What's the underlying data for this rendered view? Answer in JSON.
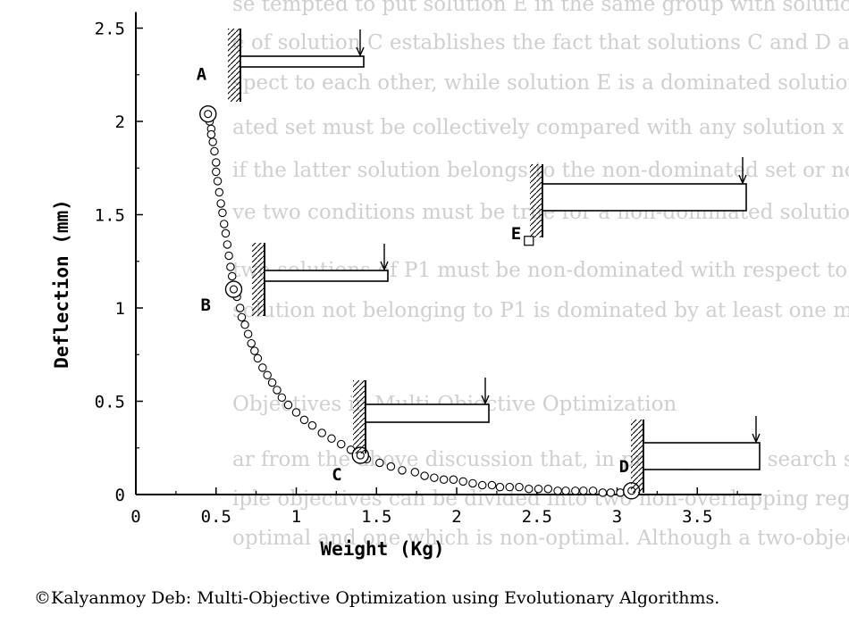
{
  "background_text": [
    "se tempted to put solution E in the same group with solution B",
    "e of solution C establishes the fact that solutions C and D are",
    "spect to each other, while solution E is a dominated solution.",
    "ated set must be collectively compared with any solution x in",
    "if the latter solution belongs to the non-dominated set or not.",
    "ve two conditions must be true for a non-dominated solution:",
    "two solutions of P1 must be non-dominated with respect to ea",
    "solution not belonging to P1 is dominated by at least one mem",
    "Objectives in Multi-Objective Optimization",
    "ar from the above discussion that, in principle, the search space",
    "iple objectives can be divided into two non-overlapping regions,",
    "optimal and one which is non-optimal. Although a two-objec"
  ],
  "copyright": "©Kalyanmoy Deb: Multi-Objective Optimization using Evolutionary Algorithms.",
  "chart_data": {
    "type": "scatter",
    "xlabel": "Weight (Kg)",
    "ylabel": "Deflection (mm)",
    "xlim": [
      0,
      3.9
    ],
    "ylim": [
      0,
      2.5
    ],
    "x_ticks": [
      0,
      0.5,
      1,
      1.5,
      2,
      2.5,
      3,
      3.5
    ],
    "x_tick_labels": [
      "0",
      "0.5",
      "1",
      "1.5",
      "2",
      "2.5",
      "3",
      "3.5"
    ],
    "y_ticks": [
      0,
      0.5,
      1,
      1.5,
      2,
      2.5
    ],
    "y_tick_labels": [
      "0",
      "0.5",
      "1",
      "1.5",
      "2",
      "2.5"
    ],
    "grid": false,
    "series": [
      {
        "marker": "circle",
        "points": [
          [
            0.45,
            2.04
          ],
          [
            0.46,
            2.0
          ],
          [
            0.47,
            1.96
          ],
          [
            0.47,
            1.93
          ],
          [
            0.48,
            1.89
          ],
          [
            0.49,
            1.84
          ],
          [
            0.5,
            1.78
          ],
          [
            0.5,
            1.73
          ],
          [
            0.51,
            1.68
          ],
          [
            0.52,
            1.62
          ],
          [
            0.53,
            1.56
          ],
          [
            0.54,
            1.51
          ],
          [
            0.55,
            1.45
          ],
          [
            0.56,
            1.4
          ],
          [
            0.57,
            1.34
          ],
          [
            0.58,
            1.28
          ],
          [
            0.59,
            1.22
          ],
          [
            0.6,
            1.17
          ],
          [
            0.62,
            1.12
          ],
          [
            0.63,
            1.06
          ],
          [
            0.65,
            1.0
          ],
          [
            0.66,
            0.95
          ],
          [
            0.68,
            0.91
          ],
          [
            0.7,
            0.86
          ],
          [
            0.72,
            0.81
          ],
          [
            0.74,
            0.77
          ],
          [
            0.76,
            0.73
          ],
          [
            0.79,
            0.68
          ],
          [
            0.82,
            0.64
          ],
          [
            0.85,
            0.6
          ],
          [
            0.88,
            0.56
          ],
          [
            0.91,
            0.52
          ],
          [
            0.95,
            0.48
          ],
          [
            1.0,
            0.44
          ],
          [
            1.05,
            0.4
          ],
          [
            1.1,
            0.37
          ],
          [
            1.16,
            0.33
          ],
          [
            1.22,
            0.3
          ],
          [
            1.28,
            0.27
          ],
          [
            1.34,
            0.24
          ],
          [
            1.44,
            0.19
          ],
          [
            1.52,
            0.17
          ],
          [
            1.59,
            0.15
          ],
          [
            1.66,
            0.13
          ],
          [
            1.74,
            0.12
          ],
          [
            1.8,
            0.1
          ],
          [
            1.86,
            0.09
          ],
          [
            1.92,
            0.08
          ],
          [
            1.98,
            0.08
          ],
          [
            2.04,
            0.07
          ],
          [
            2.1,
            0.06
          ],
          [
            2.16,
            0.05
          ],
          [
            2.22,
            0.05
          ],
          [
            2.27,
            0.04
          ],
          [
            2.33,
            0.04
          ],
          [
            2.39,
            0.04
          ],
          [
            2.45,
            0.03
          ],
          [
            2.51,
            0.03
          ],
          [
            2.57,
            0.03
          ],
          [
            2.63,
            0.02
          ],
          [
            2.68,
            0.02
          ],
          [
            2.74,
            0.02
          ],
          [
            2.79,
            0.02
          ],
          [
            2.85,
            0.02
          ],
          [
            2.91,
            0.01
          ],
          [
            2.96,
            0.01
          ],
          [
            3.02,
            0.01
          ]
        ]
      }
    ],
    "labeled_points": [
      {
        "label": "A",
        "x": 0.45,
        "y": 2.04,
        "marker": "circle-large"
      },
      {
        "label": "B",
        "x": 0.61,
        "y": 1.1,
        "marker": "circle-large"
      },
      {
        "label": "C",
        "x": 1.4,
        "y": 0.21,
        "marker": "circle-large"
      },
      {
        "label": "D",
        "x": 3.09,
        "y": 0.02,
        "marker": "circle-large"
      },
      {
        "label": "E",
        "x": 2.45,
        "y": 1.36,
        "marker": "square"
      }
    ],
    "beam_icons": [
      {
        "label": "A",
        "beam_height": "small",
        "beam_length": "long"
      },
      {
        "label": "B",
        "beam_height": "small",
        "beam_length": "long"
      },
      {
        "label": "C",
        "beam_height": "medium",
        "beam_length": "long"
      },
      {
        "label": "D",
        "beam_height": "large",
        "beam_length": "short"
      },
      {
        "label": "E",
        "beam_height": "large",
        "beam_length": "long"
      }
    ]
  }
}
